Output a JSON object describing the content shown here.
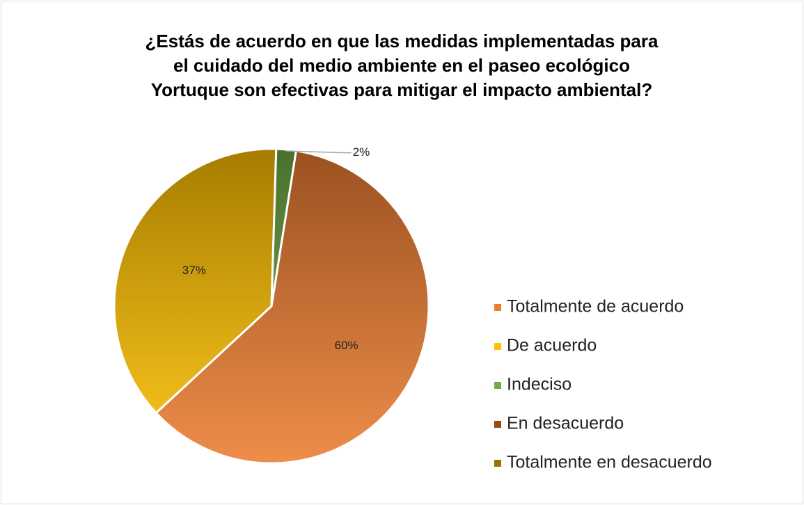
{
  "chart_data": {
    "type": "pie",
    "title": [
      "¿Estás de acuerdo en que las medidas implementadas para",
      "el cuidado del medio ambiente  en el paseo ecológico",
      "Yortuque son efectivas para mitigar el impacto ambiental?"
    ],
    "categories": [
      "Totalmente de acuerdo",
      "De acuerdo",
      "Indeciso",
      "En desacuerdo",
      "Totalmente en desacuerdo"
    ],
    "values": [
      60,
      37,
      2,
      0,
      0
    ],
    "value_labels": [
      "60%",
      "37%",
      "2%",
      null,
      null
    ],
    "colors": [
      "#ed7d31",
      "#ffc000",
      "#70ad47",
      "#9e480e",
      "#997300"
    ],
    "legend": "right"
  }
}
